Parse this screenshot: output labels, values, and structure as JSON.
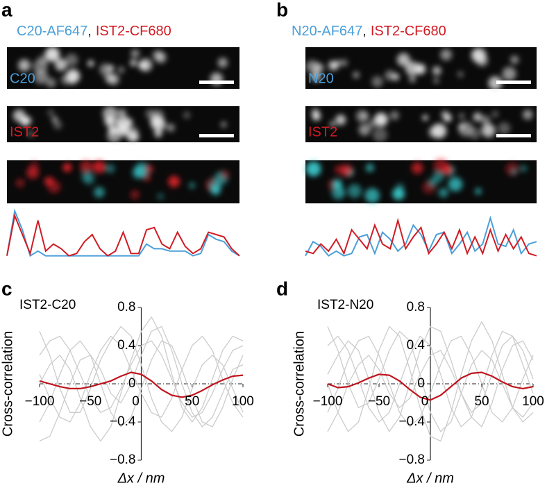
{
  "panels": [
    {
      "letter": "a",
      "label_blue": "C20-AF647",
      "separator": ",",
      "label_red": "IST2-CF680",
      "image_labels": [
        "C20",
        "IST2"
      ],
      "colors": {
        "blue": "#4a9fd8",
        "red": "#d01c24"
      },
      "profiles": {
        "red": [
          0.05,
          0.9,
          0.5,
          0.1,
          0.8,
          0.15,
          0.3,
          0.2,
          0.05,
          0.1,
          0.35,
          0.5,
          0.2,
          0.05,
          0.15,
          0.55,
          0.1,
          0.1,
          0.6,
          0.65,
          0.3,
          0.2,
          0.55,
          0.25,
          0.1,
          0.2,
          0.55,
          0.5,
          0.45,
          0.2,
          0.05
        ],
        "blue": [
          0.05,
          1.0,
          0.6,
          0.05,
          0.15,
          0.05,
          0.05,
          0.05,
          0.05,
          0.05,
          0.05,
          0.05,
          0.05,
          0.05,
          0.05,
          0.05,
          0.05,
          0.05,
          0.3,
          0.2,
          0.2,
          0.15,
          0.15,
          0.15,
          0.05,
          0.1,
          0.5,
          0.4,
          0.35,
          0.15,
          0.05
        ]
      }
    },
    {
      "letter": "b",
      "label_blue": "N20-AF647",
      "separator": ",",
      "label_red": "IST2-CF680",
      "image_labels": [
        "N20",
        "IST2"
      ],
      "colors": {
        "blue": "#4a9fd8",
        "red": "#d01c24"
      },
      "profiles": {
        "red": [
          0.15,
          0.1,
          0.3,
          0.15,
          0.4,
          0.1,
          0.6,
          0.4,
          0.2,
          0.7,
          0.3,
          0.2,
          0.8,
          0.2,
          0.45,
          0.65,
          0.1,
          0.3,
          0.55,
          0.2,
          0.6,
          0.1,
          0.45,
          0.1,
          0.6,
          0.15,
          0.5,
          0.2,
          0.45,
          0.1,
          0.05
        ],
        "blue": [
          0.05,
          0.35,
          0.25,
          0.05,
          0.15,
          0.05,
          0.1,
          0.45,
          0.5,
          0.1,
          0.55,
          0.4,
          0.15,
          0.3,
          0.7,
          0.5,
          0.15,
          0.5,
          0.55,
          0.1,
          0.3,
          0.55,
          0.15,
          0.3,
          0.85,
          0.3,
          0.25,
          0.6,
          0.1,
          0.3,
          0.35
        ]
      }
    }
  ],
  "chart_data": [
    {
      "type": "line",
      "panel": "c",
      "annotation": "IST2-C20",
      "ylabel": "Cross-correlation",
      "xlabel": "Δx / nm",
      "x": [
        -100,
        -90,
        -80,
        -70,
        -60,
        -50,
        -40,
        -30,
        -20,
        -10,
        0,
        10,
        20,
        30,
        40,
        50,
        60,
        70,
        80,
        90,
        100
      ],
      "xlim": [
        -100,
        100
      ],
      "ylim": [
        -0.8,
        0.8
      ],
      "xticks": [
        {
          "value": -100,
          "label": "−100"
        },
        {
          "value": -50,
          "label": "−50"
        },
        0,
        50,
        100
      ],
      "yticks": [
        {
          "value": -0.8,
          "label": "−0.8"
        },
        {
          "value": -0.4,
          "label": "−0.4"
        },
        0,
        0.4,
        0.8
      ],
      "series": [
        {
          "color": "#cccccc",
          "values": [
            0.3,
            0.45,
            0.5,
            0.35,
            0.1,
            -0.15,
            -0.3,
            -0.25,
            -0.05,
            0.2,
            0.4,
            0.45,
            0.3,
            0.05,
            -0.2,
            -0.35,
            -0.3,
            -0.1,
            0.15,
            0.35,
            0.4
          ]
        },
        {
          "color": "#cccccc",
          "values": [
            -0.4,
            -0.2,
            0.1,
            0.35,
            0.45,
            0.3,
            0.0,
            -0.3,
            -0.45,
            -0.35,
            -0.05,
            0.25,
            0.45,
            0.4,
            0.15,
            -0.15,
            -0.4,
            -0.45,
            -0.25,
            0.05,
            0.3
          ]
        },
        {
          "color": "#cccccc",
          "values": [
            0.1,
            -0.15,
            -0.35,
            -0.4,
            -0.2,
            0.1,
            0.35,
            0.5,
            0.4,
            0.15,
            -0.1,
            -0.3,
            -0.35,
            -0.15,
            0.15,
            0.4,
            0.5,
            0.35,
            0.05,
            -0.2,
            -0.35
          ]
        },
        {
          "color": "#cccccc",
          "values": [
            -0.6,
            -0.55,
            -0.3,
            0.0,
            0.25,
            0.3,
            0.15,
            -0.1,
            -0.2,
            0.0,
            0.3,
            0.55,
            0.6,
            0.35,
            0.0,
            -0.3,
            -0.45,
            -0.35,
            -0.1,
            0.15,
            0.2
          ]
        },
        {
          "color": "#cccccc",
          "values": [
            0.55,
            0.3,
            -0.05,
            -0.3,
            -0.3,
            -0.05,
            0.25,
            0.45,
            0.6,
            0.5,
            0.2,
            -0.15,
            -0.4,
            -0.5,
            -0.35,
            -0.05,
            0.2,
            0.3,
            0.2,
            -0.05,
            -0.3
          ]
        },
        {
          "color": "#cccccc",
          "values": [
            0.0,
            0.2,
            0.3,
            0.15,
            -0.15,
            -0.45,
            -0.6,
            -0.45,
            -0.1,
            0.25,
            0.55,
            0.7,
            0.5,
            0.1,
            -0.25,
            -0.4,
            -0.25,
            0.05,
            0.35,
            0.5,
            0.45
          ]
        },
        {
          "color": "#c0141c",
          "values": [
            0.03,
            0.0,
            -0.03,
            -0.05,
            -0.05,
            -0.03,
            0.0,
            0.03,
            0.08,
            0.12,
            0.1,
            0.03,
            -0.06,
            -0.12,
            -0.14,
            -0.12,
            -0.07,
            -0.01,
            0.04,
            0.08,
            0.09
          ]
        }
      ]
    },
    {
      "type": "line",
      "panel": "d",
      "annotation": "IST2-N20",
      "ylabel": "Cross-correlation",
      "xlabel": "Δx / nm",
      "x": [
        -100,
        -90,
        -80,
        -70,
        -60,
        -50,
        -40,
        -30,
        -20,
        -10,
        0,
        10,
        20,
        30,
        40,
        50,
        60,
        70,
        80,
        90,
        100
      ],
      "xlim": [
        -100,
        100
      ],
      "ylim": [
        -0.8,
        0.8
      ],
      "xticks": [
        {
          "value": -100,
          "label": "−100"
        },
        {
          "value": -50,
          "label": "−50"
        },
        0,
        50,
        100
      ],
      "yticks": [
        {
          "value": -0.8,
          "label": "−0.8"
        },
        {
          "value": -0.4,
          "label": "−0.4"
        },
        0,
        0.4,
        0.8
      ],
      "series": [
        {
          "color": "#cccccc",
          "values": [
            -0.3,
            -0.05,
            0.25,
            0.45,
            0.5,
            0.3,
            0.0,
            -0.3,
            -0.45,
            -0.35,
            -0.1,
            0.2,
            0.45,
            0.5,
            0.3,
            0.0,
            -0.3,
            -0.4,
            -0.25,
            0.05,
            0.3
          ]
        },
        {
          "color": "#cccccc",
          "values": [
            0.4,
            0.5,
            0.35,
            0.05,
            -0.25,
            -0.4,
            -0.3,
            0.0,
            0.3,
            0.5,
            0.4,
            0.1,
            -0.25,
            -0.45,
            -0.35,
            -0.05,
            0.3,
            0.55,
            0.5,
            0.2,
            -0.1
          ]
        },
        {
          "color": "#cccccc",
          "values": [
            0.0,
            -0.3,
            -0.5,
            -0.4,
            -0.05,
            0.35,
            0.6,
            0.5,
            0.15,
            -0.25,
            -0.55,
            -0.6,
            -0.3,
            0.1,
            0.45,
            0.65,
            0.45,
            0.1,
            -0.25,
            -0.4,
            -0.3
          ]
        },
        {
          "color": "#cccccc",
          "values": [
            -0.5,
            -0.3,
            0.0,
            0.2,
            0.3,
            0.15,
            -0.1,
            -0.25,
            -0.15,
            0.1,
            0.3,
            0.35,
            0.15,
            -0.1,
            -0.3,
            -0.2,
            0.1,
            0.4,
            0.5,
            0.35,
            0.05
          ]
        },
        {
          "color": "#cccccc",
          "values": [
            0.6,
            0.35,
            0.0,
            -0.25,
            -0.2,
            0.05,
            0.35,
            0.55,
            0.45,
            0.1,
            -0.3,
            -0.5,
            -0.4,
            -0.1,
            0.2,
            0.35,
            0.25,
            0.0,
            -0.25,
            -0.35,
            -0.2
          ]
        },
        {
          "color": "#cccccc",
          "values": [
            0.1,
            0.3,
            0.45,
            0.35,
            0.05,
            -0.3,
            -0.5,
            -0.35,
            0.0,
            0.35,
            0.6,
            0.55,
            0.25,
            -0.1,
            -0.35,
            -0.45,
            -0.2,
            0.15,
            0.4,
            0.45,
            0.25
          ]
        },
        {
          "color": "#c0141c",
          "values": [
            0.0,
            -0.04,
            -0.03,
            0.01,
            0.06,
            0.1,
            0.09,
            0.03,
            -0.06,
            -0.14,
            -0.17,
            -0.12,
            -0.03,
            0.06,
            0.11,
            0.12,
            0.08,
            0.02,
            -0.03,
            -0.05,
            -0.03
          ]
        }
      ]
    }
  ]
}
